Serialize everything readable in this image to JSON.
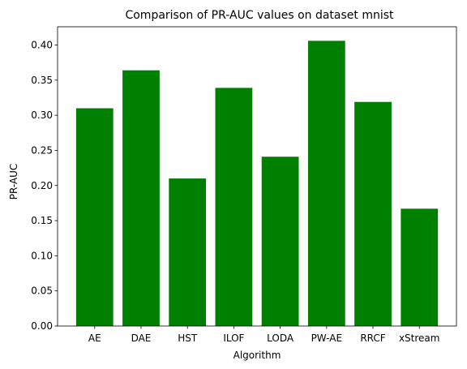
{
  "chart_data": {
    "type": "bar",
    "title": "Comparison of PR-AUC values on dataset mnist",
    "xlabel": "Algorithm",
    "ylabel": "PR-AUC",
    "categories": [
      "AE",
      "DAE",
      "HST",
      "ILOF",
      "LODA",
      "PW-AE",
      "RRCF",
      "xStream"
    ],
    "values": [
      0.31,
      0.364,
      0.21,
      0.339,
      0.241,
      0.406,
      0.319,
      0.167
    ],
    "ylim": [
      0,
      0.426
    ],
    "yticks": [
      0.0,
      0.05,
      0.1,
      0.15,
      0.2,
      0.25,
      0.3,
      0.35,
      0.4
    ],
    "bar_color": "#008000",
    "grid": false,
    "legend": "none"
  }
}
